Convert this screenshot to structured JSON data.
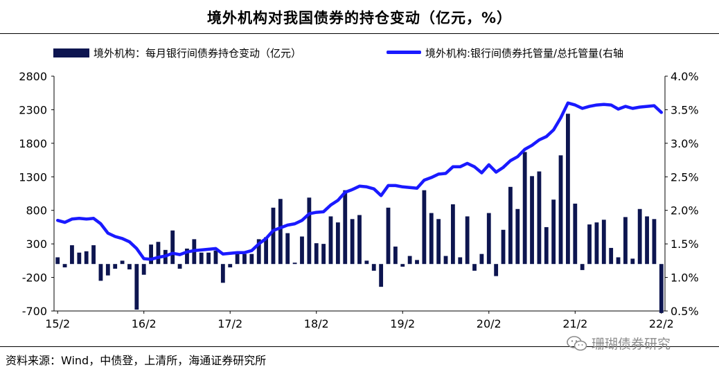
{
  "title": "境外机构对我国债券的持仓变动（亿元，%）",
  "source": "资料来源：Wind，中债登，上清所，海通证券研究所",
  "watermark": "珊瑚债券研究",
  "colors": {
    "bar": "#0d1550",
    "line": "#1a1aff"
  },
  "chart_data": {
    "type": "bar+line",
    "legend": {
      "bar": "境外机构：每月银行间债券持仓变动（亿元）",
      "line": "境外机构:银行间债券托管量/总托管量(右轴"
    },
    "left_axis": {
      "min": -700,
      "max": 2800,
      "ticks": [
        2800,
        2300,
        1800,
        1300,
        800,
        300,
        -200,
        -700
      ]
    },
    "right_axis": {
      "min": 0.5,
      "max": 4.0,
      "ticks": [
        "4.0%",
        "3.5%",
        "3.0%",
        "2.5%",
        "2.0%",
        "1.5%",
        "1.0%",
        "0.5%"
      ]
    },
    "x_tick_labels": [
      "15/2",
      "16/2",
      "17/2",
      "18/2",
      "19/2",
      "20/2",
      "21/2",
      "22/2"
    ],
    "months_per_tick": 12,
    "series": [
      {
        "name": "境外机构：每月银行间债券持仓变动（亿元）",
        "kind": "bar",
        "values": [
          100,
          -50,
          280,
          170,
          190,
          280,
          -250,
          -170,
          -70,
          50,
          -80,
          -680,
          -160,
          290,
          330,
          210,
          500,
          -70,
          230,
          370,
          170,
          170,
          200,
          -280,
          -50,
          150,
          150,
          150,
          370,
          400,
          840,
          970,
          460,
          20,
          410,
          990,
          310,
          300,
          710,
          620,
          1100,
          670,
          730,
          50,
          -100,
          -340,
          840,
          260,
          -40,
          120,
          60,
          1100,
          760,
          670,
          120,
          890,
          100,
          710,
          -100,
          150,
          760,
          -180,
          510,
          1150,
          820,
          1670,
          1310,
          1380,
          550,
          960,
          1620,
          2240,
          900,
          -90,
          590,
          620,
          660,
          240,
          100,
          700,
          80,
          820,
          710,
          670,
          -730
        ]
      },
      {
        "name": "境外机构:银行间债券托管量/总托管量(右轴",
        "kind": "line",
        "axis": "right",
        "values": [
          1.85,
          1.82,
          1.87,
          1.88,
          1.87,
          1.88,
          1.8,
          1.66,
          1.61,
          1.58,
          1.53,
          1.43,
          1.28,
          1.27,
          1.3,
          1.32,
          1.36,
          1.34,
          1.38,
          1.4,
          1.41,
          1.42,
          1.43,
          1.35,
          1.36,
          1.37,
          1.37,
          1.4,
          1.5,
          1.58,
          1.7,
          1.74,
          1.78,
          1.8,
          1.85,
          1.95,
          1.97,
          1.98,
          2.08,
          2.15,
          2.27,
          2.31,
          2.36,
          2.35,
          2.32,
          2.22,
          2.37,
          2.37,
          2.35,
          2.34,
          2.33,
          2.45,
          2.49,
          2.54,
          2.55,
          2.65,
          2.65,
          2.7,
          2.65,
          2.56,
          2.68,
          2.57,
          2.64,
          2.74,
          2.8,
          2.91,
          2.97,
          3.05,
          3.1,
          3.2,
          3.38,
          3.6,
          3.57,
          3.52,
          3.55,
          3.57,
          3.58,
          3.57,
          3.51,
          3.55,
          3.52,
          3.54,
          3.55,
          3.56,
          3.46
        ]
      }
    ]
  }
}
